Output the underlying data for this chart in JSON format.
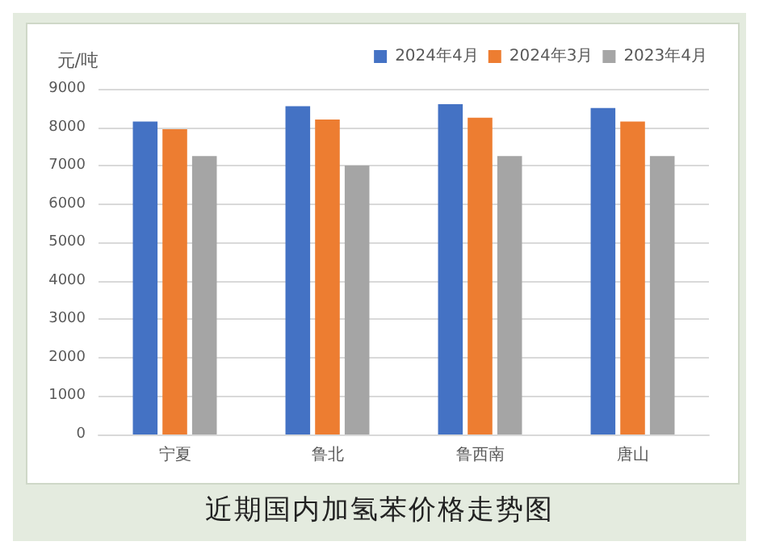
{
  "chart_data": {
    "type": "bar",
    "title": "近期国内加氢苯价格走势图",
    "ylabel": "元/吨",
    "categories": [
      "宁夏",
      "鲁北",
      "鲁西南",
      "唐山"
    ],
    "series": [
      {
        "name": "2024年4月",
        "color": "#4472c4",
        "values": [
          8150,
          8550,
          8600,
          8500
        ]
      },
      {
        "name": "2024年3月",
        "color": "#ed7d31",
        "values": [
          7950,
          8200,
          8250,
          8150
        ]
      },
      {
        "name": "2023年4月",
        "color": "#a5a5a5",
        "values": [
          7250,
          7000,
          7250,
          7250
        ]
      }
    ],
    "ylim": [
      0,
      9000
    ],
    "yticks": [
      0,
      1000,
      2000,
      3000,
      4000,
      5000,
      6000,
      7000,
      8000,
      9000
    ],
    "grid": "y",
    "legend": "top right"
  }
}
